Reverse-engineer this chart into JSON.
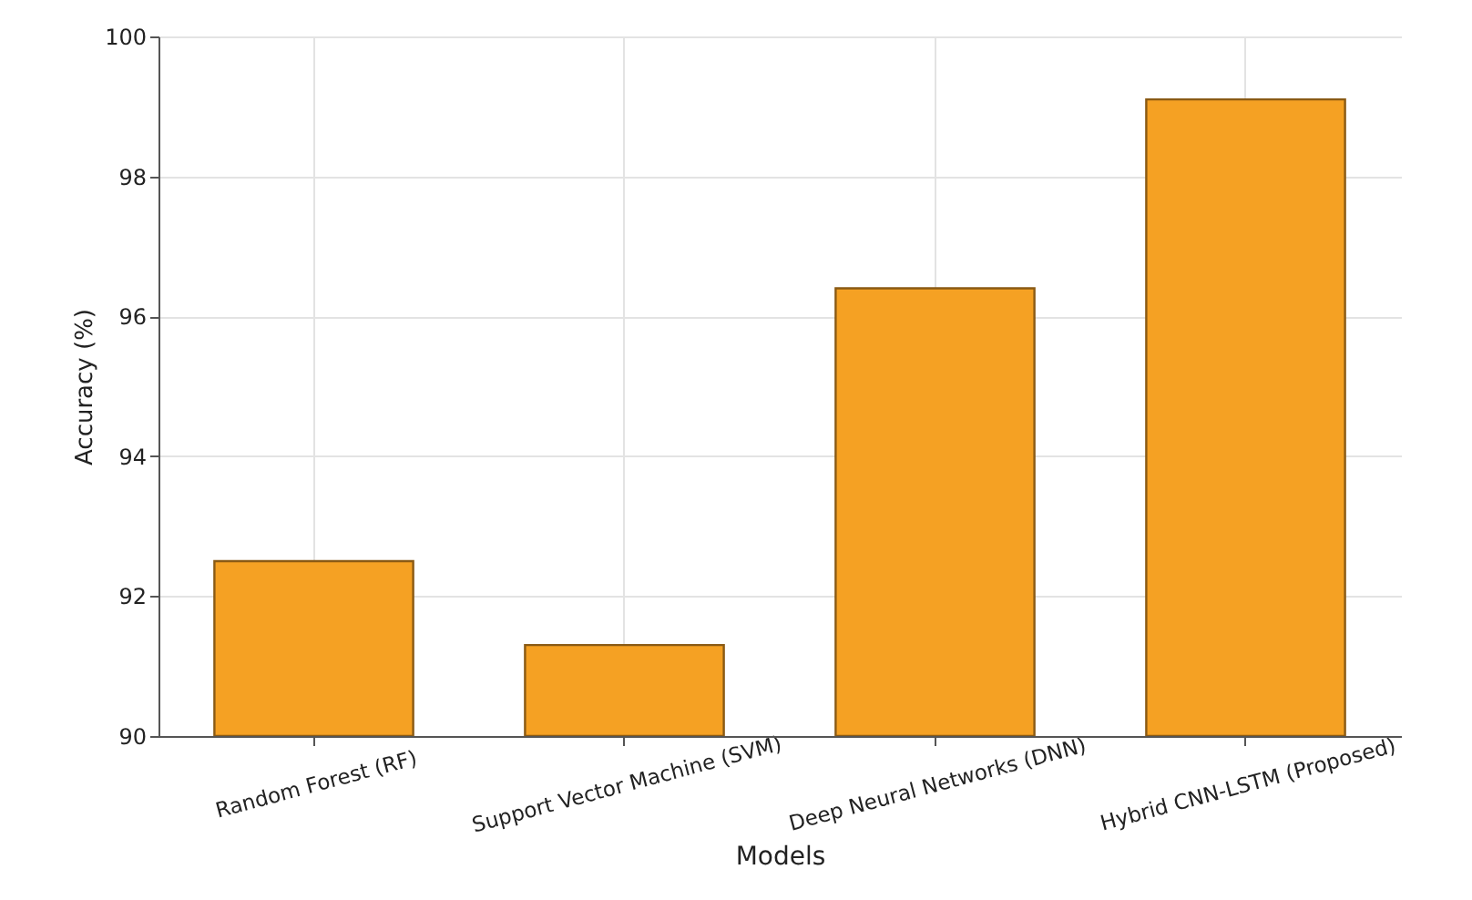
{
  "chart_data": {
    "type": "bar",
    "xlabel": "Models",
    "ylabel": "Accuracy (%)",
    "categories": [
      "Random Forest (RF)",
      "Support Vector Machine (SVM)",
      "Deep Neural Networks (DNN)",
      "Hybrid CNN-LSTM (Proposed)"
    ],
    "values": [
      92.5,
      91.3,
      96.4,
      99.1
    ],
    "color": "#f5a123",
    "ylim": [
      90,
      100
    ],
    "yticks": [
      90,
      92,
      94,
      96,
      98,
      100
    ],
    "grid": true
  }
}
